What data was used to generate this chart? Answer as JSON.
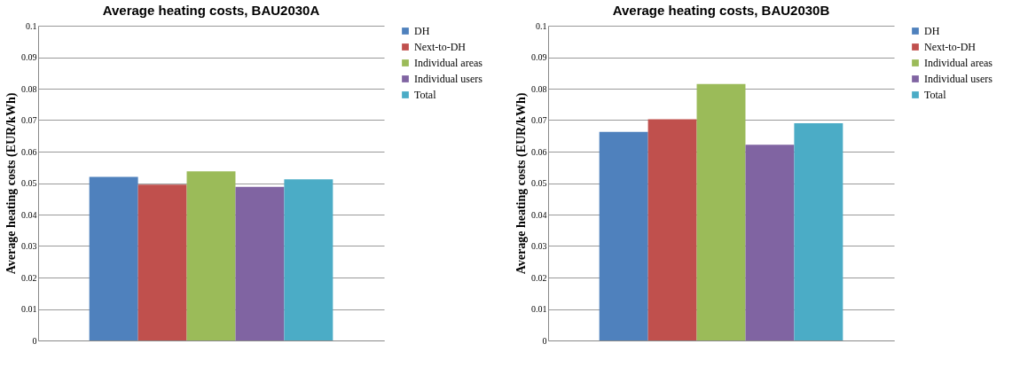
{
  "chart_data": [
    {
      "type": "bar",
      "title": "Average heating costs, BAU2030A",
      "ylabel": "Average heating costs (EUR/kWh)",
      "categories": [
        null
      ],
      "series": [
        {
          "name": "DH",
          "color": "#4f81bd",
          "values": [
            0.052
          ]
        },
        {
          "name": "Next-to-DH",
          "color": "#c0504d",
          "values": [
            0.0495
          ]
        },
        {
          "name": "Individual areas",
          "color": "#9bbb59",
          "values": [
            0.0537
          ]
        },
        {
          "name": "Individual users",
          "color": "#8064a2",
          "values": [
            0.0488
          ]
        },
        {
          "name": "Total",
          "color": "#4bacc6",
          "values": [
            0.0512
          ]
        }
      ],
      "ylim": [
        0,
        0.1
      ],
      "yticks": [
        0,
        0.01,
        0.02,
        0.03,
        0.04,
        0.05,
        0.06,
        0.07,
        0.08,
        0.09,
        0.1
      ],
      "grid": "y",
      "legend": "right",
      "tick_labels": "y"
    },
    {
      "type": "bar",
      "title": "Average heating costs, BAU2030B",
      "ylabel": "Average heating costs (EUR/kWh)",
      "categories": [
        null
      ],
      "series": [
        {
          "name": "DH",
          "color": "#4f81bd",
          "values": [
            0.0663
          ]
        },
        {
          "name": "Next-to-DH",
          "color": "#c0504d",
          "values": [
            0.0703
          ]
        },
        {
          "name": "Individual areas",
          "color": "#9bbb59",
          "values": [
            0.0815
          ]
        },
        {
          "name": "Individual users",
          "color": "#8064a2",
          "values": [
            0.0622
          ]
        },
        {
          "name": "Total",
          "color": "#4bacc6",
          "values": [
            0.069
          ]
        }
      ],
      "ylim": [
        0,
        0.1
      ],
      "yticks": [
        0,
        0.01,
        0.02,
        0.03,
        0.04,
        0.05,
        0.06,
        0.07,
        0.08,
        0.09,
        0.1
      ],
      "grid": "y",
      "legend": "right",
      "tick_labels": "y"
    }
  ]
}
